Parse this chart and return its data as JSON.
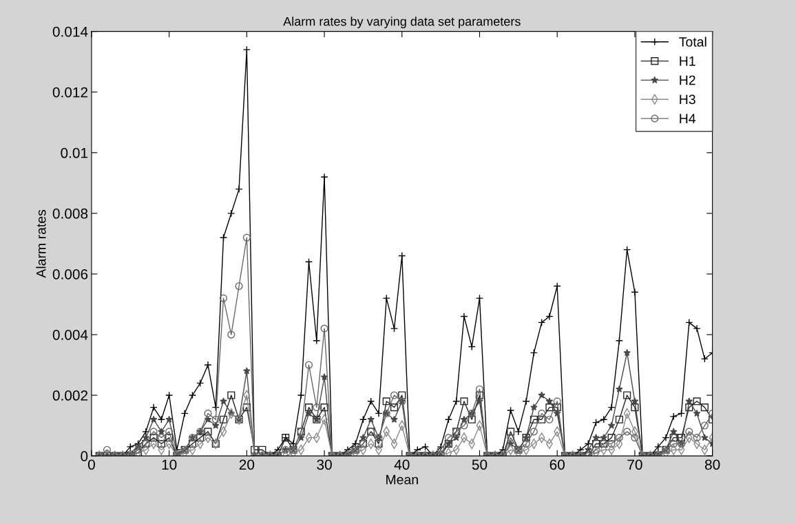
{
  "chart_data": {
    "type": "line",
    "title": "Alarm rates by varying data set parameters",
    "xlabel": "Mean",
    "ylabel": "Alarm rates",
    "x": [
      1,
      2,
      3,
      4,
      5,
      6,
      7,
      8,
      9,
      10,
      11,
      12,
      13,
      14,
      15,
      16,
      17,
      18,
      19,
      20,
      21,
      22,
      23,
      24,
      25,
      26,
      27,
      28,
      29,
      30,
      31,
      32,
      33,
      34,
      35,
      36,
      37,
      38,
      39,
      40,
      41,
      42,
      43,
      44,
      45,
      46,
      47,
      48,
      49,
      50,
      51,
      52,
      53,
      54,
      55,
      56,
      57,
      58,
      59,
      60,
      61,
      62,
      63,
      64,
      65,
      66,
      67,
      68,
      69,
      70,
      71,
      72,
      73,
      74,
      75,
      76,
      77,
      78,
      79,
      80
    ],
    "series": [
      {
        "name": "Total",
        "color": "#000000",
        "marker": "cross",
        "values": [
          0,
          0,
          0,
          0,
          0.0003,
          0.0004,
          0.0008,
          0.0016,
          0.0012,
          0.002,
          0.0002,
          0.0014,
          0.002,
          0.0024,
          0.003,
          0.0016,
          0.0072,
          0.008,
          0.0088,
          0.0134,
          0,
          0,
          0,
          0.0002,
          0.0006,
          0.0004,
          0.002,
          0.0064,
          0.0038,
          0.0092,
          0,
          0,
          0.0002,
          0.0004,
          0.0012,
          0.0018,
          0.0014,
          0.0052,
          0.0042,
          0.0066,
          0,
          0.0002,
          0.0003,
          0,
          0.0003,
          0.0012,
          0.0018,
          0.0046,
          0.0036,
          0.0052,
          0,
          0,
          0.0002,
          0.0015,
          0.0008,
          0.0018,
          0.0034,
          0.0044,
          0.0046,
          0.0056,
          0,
          0,
          0.0002,
          0.0004,
          0.0011,
          0.0012,
          0.0016,
          0.0038,
          0.0068,
          0.0054,
          0,
          0,
          0.0003,
          0.0006,
          0.0013,
          0.0014,
          0.0044,
          0.0042,
          0.0032,
          0.0034
        ]
      },
      {
        "name": "H1",
        "color": "#242424",
        "marker": "square",
        "values": [
          0,
          0,
          0,
          0,
          0,
          0.0001,
          0.0004,
          0.0006,
          0.0004,
          0.0006,
          0,
          0.0002,
          0.0004,
          0.0006,
          0.0008,
          0.0004,
          0.0012,
          0.002,
          0.0012,
          0.0016,
          0.0002,
          0.0002,
          0,
          0,
          0.0006,
          0.0002,
          0.0008,
          0.0016,
          0.0012,
          0.0016,
          0,
          0,
          0,
          0.0002,
          0.0004,
          0.0008,
          0.0004,
          0.0018,
          0.0016,
          0.002,
          0,
          0,
          0,
          0,
          0,
          0.0004,
          0.0008,
          0.0018,
          0.0012,
          0.002,
          0,
          0,
          0,
          0.0008,
          0.0002,
          0.0006,
          0.0012,
          0.0012,
          0.0016,
          0.0016,
          0,
          0,
          0,
          0,
          0.0004,
          0.0004,
          0.0006,
          0.0012,
          0.002,
          0.0016,
          0,
          0,
          0,
          0.0002,
          0.0006,
          0.0006,
          0.0016,
          0.0018,
          0.0016,
          0.0012
        ]
      },
      {
        "name": "H2",
        "color": "#484848",
        "marker": "star",
        "values": [
          0,
          0,
          0,
          0,
          0.0001,
          0.0003,
          0.0006,
          0.0012,
          0.0008,
          0.0012,
          0.0001,
          0.0002,
          0.0006,
          0.0008,
          0.0012,
          0.001,
          0.0018,
          0.0014,
          0.0012,
          0.0028,
          0,
          0,
          0,
          0,
          0.0002,
          0.0002,
          0.0006,
          0.0014,
          0.0012,
          0.0026,
          0,
          0,
          0.0001,
          0.0002,
          0.0006,
          0.0012,
          0.0006,
          0.0014,
          0.0012,
          0.0018,
          0,
          0,
          0,
          0,
          0.0001,
          0.0004,
          0.0006,
          0.0012,
          0.0014,
          0.0018,
          0,
          0,
          0,
          0.0004,
          0.0002,
          0.0006,
          0.0016,
          0.002,
          0.0018,
          0.0014,
          0,
          0,
          0,
          0.0002,
          0.0006,
          0.0006,
          0.001,
          0.0022,
          0.0034,
          0.0018,
          0,
          0,
          0.0001,
          0.0002,
          0.0008,
          0.0004,
          0.0018,
          0.0014,
          0.0006,
          0.0004
        ]
      },
      {
        "name": "H3",
        "color": "#8a8a8a",
        "marker": "diamond",
        "values": [
          0,
          0,
          0,
          0,
          0,
          0.0001,
          0.0002,
          0.0004,
          0.0002,
          0.0004,
          0,
          0.0001,
          0.0002,
          0.0004,
          0.0006,
          0.0004,
          0.0008,
          0.0014,
          0.0012,
          0.002,
          0,
          0,
          0,
          0,
          0,
          0.0001,
          0.0002,
          0.0006,
          0.0006,
          0.0012,
          0,
          0,
          0,
          0.0001,
          0.0002,
          0.0004,
          0.0002,
          0.0008,
          0.0004,
          0.001,
          0,
          0,
          0,
          0,
          0,
          0.0001,
          0.0002,
          0.0006,
          0.0004,
          0.001,
          0,
          0,
          0,
          0.0002,
          0.0001,
          0.0002,
          0.0004,
          0.0006,
          0.0004,
          0.0008,
          0,
          0,
          0,
          0,
          0.0001,
          0.0002,
          0.0002,
          0.0004,
          0.0014,
          0.0008,
          0,
          0,
          0,
          0.0001,
          0.0002,
          0.0002,
          0.0006,
          0.0004,
          0.0002,
          0.0006
        ]
      },
      {
        "name": "H4",
        "color": "#686868",
        "marker": "circle",
        "values": [
          0,
          0.0002,
          0,
          0,
          0,
          0.0002,
          0.0004,
          0.0008,
          0.0006,
          0.0008,
          0,
          0.0002,
          0.0006,
          0.0008,
          0.0014,
          0.0012,
          0.0052,
          0.004,
          0.0056,
          0.0072,
          0,
          0,
          0,
          0,
          0.0002,
          0.0002,
          0.0008,
          0.003,
          0.0016,
          0.0042,
          0,
          0,
          0,
          0.0002,
          0.0004,
          0.0008,
          0.0006,
          0.0014,
          0.002,
          0.0018,
          0,
          0,
          0,
          0,
          0.0002,
          0.0006,
          0.0008,
          0.001,
          0.0014,
          0.0022,
          0,
          0,
          0,
          0.0006,
          0.0002,
          0.0004,
          0.0008,
          0.0014,
          0.0012,
          0.0018,
          0,
          0,
          0,
          0,
          0.0002,
          0.0004,
          0.0004,
          0.0006,
          0.0008,
          0.0006,
          0,
          0,
          0,
          0.0002,
          0.0004,
          0.0004,
          0.0008,
          0.0006,
          0.001,
          0.0014
        ]
      }
    ],
    "xlim": [
      0,
      80
    ],
    "xticks": [
      0,
      10,
      20,
      30,
      40,
      50,
      60,
      70,
      80
    ],
    "ylim": [
      0,
      0.014
    ],
    "yticks": [
      0,
      0.002,
      0.004,
      0.006,
      0.008,
      0.01,
      0.012,
      0.014
    ],
    "grid": false,
    "legend": "top right",
    "line_style": "solid"
  }
}
